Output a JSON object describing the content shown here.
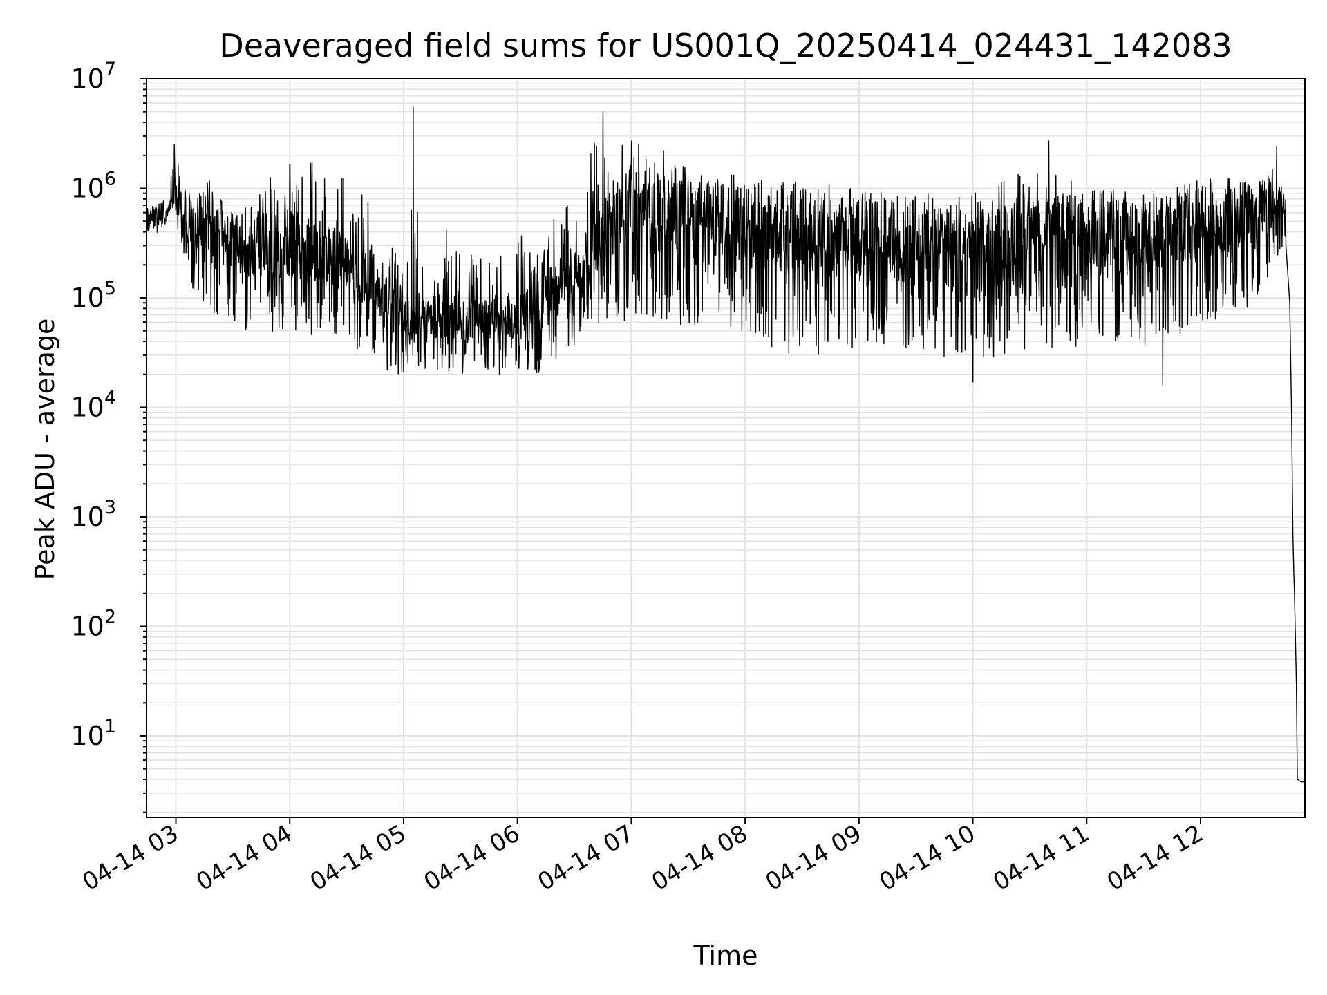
{
  "chart_data": {
    "type": "line",
    "title": "Deaveraged field sums for US001Q_20250414_024431_142083",
    "xlabel": "Time",
    "ylabel": "Peak ADU - average",
    "yscale": "log",
    "ylim": [
      1.8,
      10000000
    ],
    "xlim": [
      "2025-04-14 02:44:31",
      "2025-04-14 12:55:00"
    ],
    "grid": true,
    "line_color": "#000000",
    "grid_color": "#e3e3e3",
    "x_ticks": [
      {
        "value": "2025-04-14 03:00",
        "label": "04-14 03"
      },
      {
        "value": "2025-04-14 04:00",
        "label": "04-14 04"
      },
      {
        "value": "2025-04-14 05:00",
        "label": "04-14 05"
      },
      {
        "value": "2025-04-14 06:00",
        "label": "04-14 06"
      },
      {
        "value": "2025-04-14 07:00",
        "label": "04-14 07"
      },
      {
        "value": "2025-04-14 08:00",
        "label": "04-14 08"
      },
      {
        "value": "2025-04-14 09:00",
        "label": "04-14 09"
      },
      {
        "value": "2025-04-14 10:00",
        "label": "04-14 10"
      },
      {
        "value": "2025-04-14 11:00",
        "label": "04-14 11"
      },
      {
        "value": "2025-04-14 12:00",
        "label": "04-14 12"
      }
    ],
    "y_ticks": [
      {
        "value": 10,
        "base": "10",
        "exp": "1"
      },
      {
        "value": 100,
        "base": "10",
        "exp": "2"
      },
      {
        "value": 1000,
        "base": "10",
        "exp": "3"
      },
      {
        "value": 10000,
        "base": "10",
        "exp": "4"
      },
      {
        "value": 100000,
        "base": "10",
        "exp": "5"
      },
      {
        "value": 1000000,
        "base": "10",
        "exp": "6"
      },
      {
        "value": 10000000,
        "base": "10",
        "exp": "7"
      }
    ],
    "series": [
      {
        "style": "noisy time series; local bands are [time, low, typical, high]",
        "bands": [
          [
            "2025-04-14 02:44:31",
            400000,
            550000,
            700000
          ],
          [
            "2025-04-14 02:55:00",
            350000,
            550000,
            900000
          ],
          [
            "2025-04-14 02:59:00",
            600000,
            900000,
            2500000
          ],
          [
            "2025-04-14 03:05:00",
            150000,
            450000,
            1000000
          ],
          [
            "2025-04-14 03:15:00",
            100000,
            450000,
            1300000
          ],
          [
            "2025-04-14 03:25:00",
            60000,
            300000,
            900000
          ],
          [
            "2025-04-14 03:40:00",
            50000,
            250000,
            1000000
          ],
          [
            "2025-04-14 04:00:00",
            50000,
            250000,
            1800000
          ],
          [
            "2025-04-14 04:20:00",
            50000,
            220000,
            1700000
          ],
          [
            "2025-04-14 04:40:00",
            35000,
            150000,
            900000
          ],
          [
            "2025-04-14 04:50:00",
            25000,
            80000,
            500000
          ],
          [
            "2025-04-14 05:05:00",
            20000,
            60000,
            700000
          ],
          [
            "2025-04-14 05:30:00",
            22000,
            55000,
            350000
          ],
          [
            "2025-04-14 06:00:00",
            22000,
            60000,
            350000
          ],
          [
            "2025-04-14 06:15:00",
            20000,
            80000,
            500000
          ],
          [
            "2025-04-14 06:30:00",
            40000,
            150000,
            800000
          ],
          [
            "2025-04-14 06:40:00",
            60000,
            250000,
            2600000
          ],
          [
            "2025-04-14 07:00:00",
            70000,
            500000,
            2700000
          ],
          [
            "2025-04-14 07:30:00",
            60000,
            400000,
            2000000
          ],
          [
            "2025-04-14 08:00:00",
            50000,
            350000,
            1300000
          ],
          [
            "2025-04-14 08:30:00",
            30000,
            300000,
            1200000
          ],
          [
            "2025-04-14 09:00:00",
            40000,
            300000,
            1000000
          ],
          [
            "2025-04-14 09:30:00",
            35000,
            250000,
            900000
          ],
          [
            "2025-04-14 10:00:00",
            30000,
            200000,
            900000
          ],
          [
            "2025-04-14 10:30:00",
            35000,
            250000,
            1500000
          ],
          [
            "2025-04-14 11:00:00",
            40000,
            300000,
            1200000
          ],
          [
            "2025-04-14 11:30:00",
            40000,
            300000,
            1200000
          ],
          [
            "2025-04-14 12:00:00",
            60000,
            400000,
            1300000
          ],
          [
            "2025-04-14 12:30:00",
            100000,
            500000,
            1100000
          ],
          [
            "2025-04-14 12:40:00",
            250000,
            700000,
            2400000
          ],
          [
            "2025-04-14 12:45:00",
            300000,
            600000,
            900000
          ]
        ],
        "spikes": [
          [
            "2025-04-14 02:59:00",
            2500000
          ],
          [
            "2025-04-14 05:05:00",
            5500000
          ],
          [
            "2025-04-14 06:45:00",
            5000000
          ],
          [
            "2025-04-14 07:00:00",
            2700000
          ],
          [
            "2025-04-14 10:00:00",
            17000
          ],
          [
            "2025-04-14 10:40:00",
            2700000
          ],
          [
            "2025-04-14 11:40:00",
            16000
          ],
          [
            "2025-04-14 12:40:00",
            2400000
          ]
        ],
        "tail": [
          [
            "2025-04-14 12:45:00",
            300000
          ],
          [
            "2025-04-14 12:47:00",
            90000
          ],
          [
            "2025-04-14 12:48:00",
            8000
          ],
          [
            "2025-04-14 12:48:40",
            700
          ],
          [
            "2025-04-14 12:49:10",
            300
          ],
          [
            "2025-04-14 12:49:30",
            200
          ],
          [
            "2025-04-14 12:50:30",
            30
          ],
          [
            "2025-04-14 12:51:00",
            4
          ],
          [
            "2025-04-14 12:53:00",
            3.8
          ],
          [
            "2025-04-14 12:55:00",
            3.8
          ]
        ]
      }
    ]
  }
}
